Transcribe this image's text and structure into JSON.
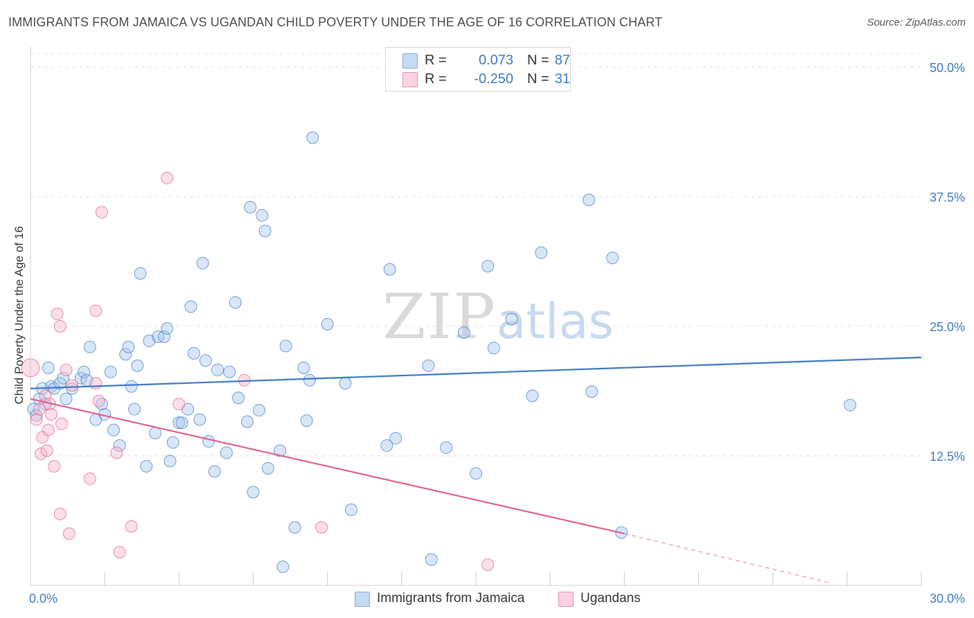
{
  "header": {
    "title": "IMMIGRANTS FROM JAMAICA VS UGANDAN CHILD POVERTY UNDER THE AGE OF 16 CORRELATION CHART",
    "source": "Source: ZipAtlas.com"
  },
  "watermark": {
    "zip": "ZIP",
    "atlas": "atlas"
  },
  "legend": {
    "rows": [
      {
        "r_label": "R =",
        "r_value": "0.073",
        "n_label": "N =",
        "n_value": "87",
        "color": "#aac8ee"
      },
      {
        "r_label": "R =",
        "r_value": "-0.250",
        "n_label": "N =",
        "n_value": "31",
        "color": "#f5b8cb"
      }
    ]
  },
  "bottom_legend": {
    "items": [
      {
        "label": "Immigrants from Jamaica",
        "color": "#aac8ee"
      },
      {
        "label": "Ugandans",
        "color": "#f5b8cb"
      }
    ]
  },
  "chart_data": {
    "type": "scatter",
    "title": "IMMIGRANTS FROM JAMAICA VS UGANDAN CHILD POVERTY UNDER THE AGE OF 16 CORRELATION CHART",
    "xlabel": "",
    "ylabel": "Child Poverty Under the Age of 16",
    "xlim": [
      0,
      30
    ],
    "ylim": [
      0,
      50
    ],
    "x_tick_labels": [
      "0.0%",
      "30.0%"
    ],
    "y_tick_values": [
      12.5,
      25.0,
      37.5,
      50.0
    ],
    "y_tick_labels": [
      "12.5%",
      "25.0%",
      "37.5%",
      "50.0%"
    ],
    "grid": true,
    "legend_position": "top-center",
    "series": [
      {
        "name": "Immigrants from Jamaica",
        "color": "#3b78c4",
        "fill": "#aac8ee",
        "trend": {
          "x": [
            0,
            30
          ],
          "y": [
            19.0,
            22.0
          ]
        },
        "points": [
          [
            0.1,
            17.0
          ],
          [
            0.3,
            18.0
          ],
          [
            0.4,
            19.0
          ],
          [
            0.6,
            21.0
          ],
          [
            0.5,
            17.5
          ],
          [
            0.7,
            19.2
          ],
          [
            0.8,
            19.0
          ],
          [
            1.0,
            19.5
          ],
          [
            1.1,
            20.0
          ],
          [
            1.2,
            18.0
          ],
          [
            1.4,
            19.0
          ],
          [
            1.7,
            20.0
          ],
          [
            1.8,
            20.6
          ],
          [
            1.9,
            19.8
          ],
          [
            2.0,
            23.0
          ],
          [
            2.2,
            16.0
          ],
          [
            2.4,
            17.5
          ],
          [
            2.5,
            16.5
          ],
          [
            2.7,
            20.6
          ],
          [
            2.8,
            15.0
          ],
          [
            3.0,
            13.5
          ],
          [
            3.2,
            22.3
          ],
          [
            3.3,
            23.0
          ],
          [
            3.4,
            19.2
          ],
          [
            3.5,
            17.0
          ],
          [
            3.6,
            21.2
          ],
          [
            3.7,
            30.1
          ],
          [
            3.9,
            11.5
          ],
          [
            4.0,
            23.6
          ],
          [
            4.2,
            14.7
          ],
          [
            4.3,
            24.0
          ],
          [
            4.5,
            24.0
          ],
          [
            4.6,
            24.8
          ],
          [
            4.7,
            12.0
          ],
          [
            4.8,
            13.8
          ],
          [
            5.0,
            15.7
          ],
          [
            5.1,
            15.7
          ],
          [
            5.3,
            17.0
          ],
          [
            5.4,
            26.9
          ],
          [
            5.5,
            22.4
          ],
          [
            5.7,
            16.0
          ],
          [
            5.8,
            31.1
          ],
          [
            5.9,
            21.7
          ],
          [
            6.0,
            13.9
          ],
          [
            6.2,
            11.0
          ],
          [
            6.3,
            20.8
          ],
          [
            6.6,
            12.8
          ],
          [
            6.7,
            20.6
          ],
          [
            6.9,
            27.3
          ],
          [
            7.0,
            18.1
          ],
          [
            7.3,
            15.8
          ],
          [
            7.4,
            36.5
          ],
          [
            7.5,
            9.0
          ],
          [
            7.7,
            16.9
          ],
          [
            7.8,
            35.7
          ],
          [
            7.9,
            34.2
          ],
          [
            8.0,
            11.3
          ],
          [
            8.4,
            13.0
          ],
          [
            8.5,
            1.8
          ],
          [
            8.6,
            23.1
          ],
          [
            8.9,
            5.6
          ],
          [
            9.2,
            21.0
          ],
          [
            9.4,
            19.8
          ],
          [
            9.3,
            15.9
          ],
          [
            9.5,
            43.2
          ],
          [
            10.0,
            25.2
          ],
          [
            10.6,
            19.5
          ],
          [
            10.8,
            7.3
          ],
          [
            12.0,
            13.5
          ],
          [
            12.3,
            14.2
          ],
          [
            12.1,
            30.5
          ],
          [
            13.4,
            21.2
          ],
          [
            13.5,
            2.5
          ],
          [
            14.0,
            13.3
          ],
          [
            14.6,
            24.4
          ],
          [
            15.0,
            10.8
          ],
          [
            15.4,
            30.8
          ],
          [
            15.6,
            22.9
          ],
          [
            16.2,
            25.7
          ],
          [
            16.9,
            18.3
          ],
          [
            17.2,
            32.1
          ],
          [
            18.9,
            18.7
          ],
          [
            18.8,
            37.2
          ],
          [
            19.6,
            31.6
          ],
          [
            19.9,
            5.1
          ],
          [
            27.6,
            17.4
          ],
          [
            0.2,
            16.4
          ]
        ]
      },
      {
        "name": "Ugandans",
        "color": "#e0608f",
        "fill": "#f5b8cb",
        "trend": {
          "x": [
            0,
            20
          ],
          "y": [
            18.0,
            5.0
          ]
        },
        "trend_extension": {
          "x": [
            20,
            27
          ],
          "y": [
            5.0,
            0.2
          ]
        },
        "points": [
          [
            0.0,
            21.0
          ],
          [
            0.2,
            16.0
          ],
          [
            0.3,
            17.0
          ],
          [
            0.35,
            12.7
          ],
          [
            0.4,
            14.3
          ],
          [
            0.5,
            18.3
          ],
          [
            0.55,
            13.0
          ],
          [
            0.6,
            15.0
          ],
          [
            0.65,
            17.5
          ],
          [
            0.7,
            16.5
          ],
          [
            0.8,
            11.5
          ],
          [
            0.9,
            26.2
          ],
          [
            1.0,
            25.0
          ],
          [
            1.05,
            15.6
          ],
          [
            1.0,
            6.9
          ],
          [
            1.2,
            20.8
          ],
          [
            1.3,
            5.0
          ],
          [
            1.4,
            19.3
          ],
          [
            2.0,
            10.3
          ],
          [
            2.2,
            26.5
          ],
          [
            2.4,
            36.0
          ],
          [
            2.3,
            17.8
          ],
          [
            2.2,
            19.5
          ],
          [
            2.9,
            12.8
          ],
          [
            3.0,
            3.2
          ],
          [
            3.4,
            5.7
          ],
          [
            4.6,
            39.3
          ],
          [
            5.0,
            17.5
          ],
          [
            7.2,
            19.8
          ],
          [
            9.8,
            5.6
          ],
          [
            15.4,
            2.0
          ]
        ]
      }
    ]
  }
}
